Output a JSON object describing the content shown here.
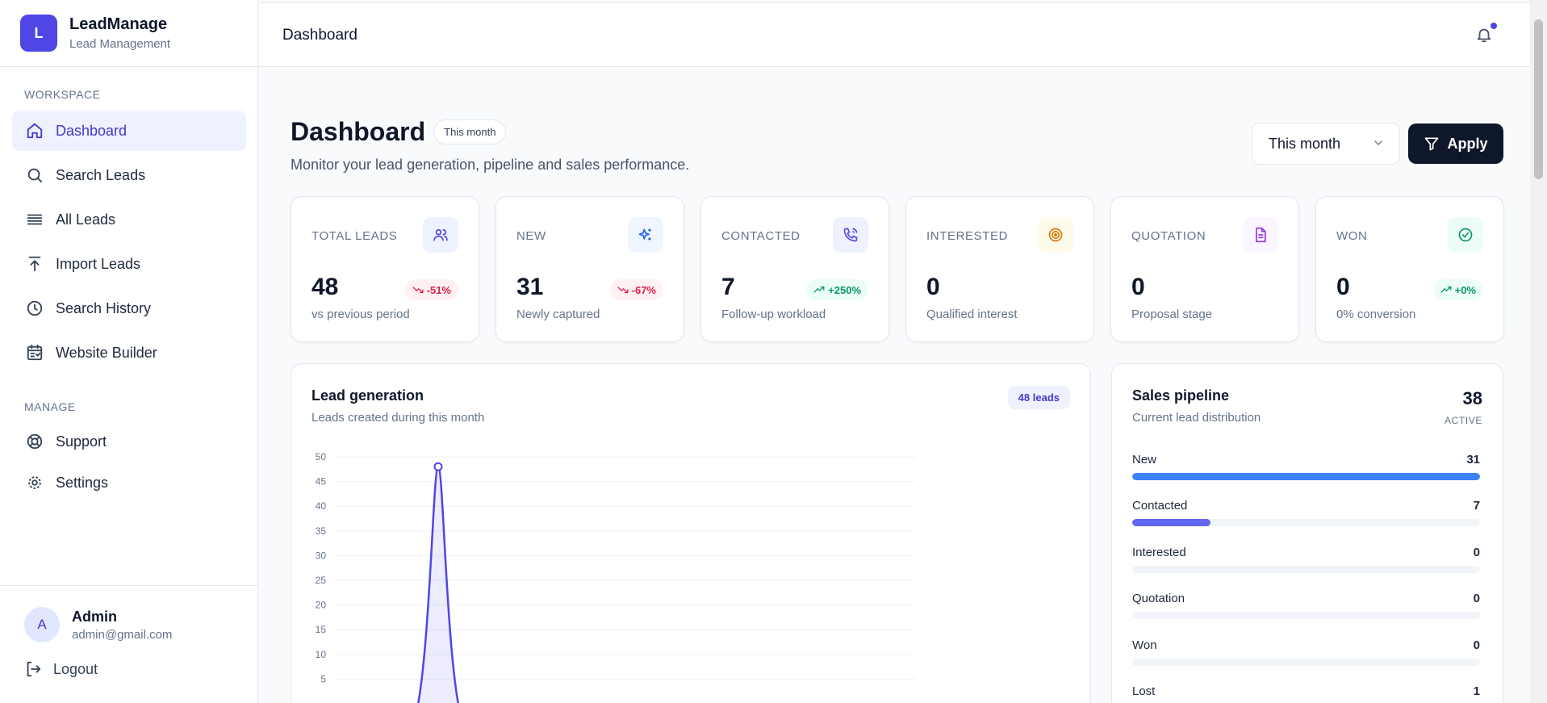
{
  "brand": {
    "logo_letter": "L",
    "name": "LeadManage",
    "subtitle": "Lead Management"
  },
  "sidebar": {
    "workspace_label": "WORKSPACE",
    "workspace_items": [
      {
        "label": "Dashboard",
        "icon": "home-icon",
        "active": true
      },
      {
        "label": "Search Leads",
        "icon": "search-icon"
      },
      {
        "label": "All Leads",
        "icon": "list-icon"
      },
      {
        "label": "Import Leads",
        "icon": "upload-icon"
      },
      {
        "label": "Search History",
        "icon": "clock-icon"
      },
      {
        "label": "Website Builder",
        "icon": "builder-icon"
      }
    ],
    "manage_label": "MANAGE",
    "manage_items": [
      {
        "label": "Support",
        "icon": "lifebuoy-icon"
      },
      {
        "label": "Settings",
        "icon": "gear-icon"
      }
    ],
    "user": {
      "avatar_letter": "A",
      "name": "Admin",
      "email": "admin@gmail.com"
    },
    "logout_label": "Logout"
  },
  "header": {
    "title": "Dashboard",
    "notification_icon": "bell-icon"
  },
  "page": {
    "title": "Dashboard",
    "period_badge": "This month",
    "description": "Monitor your lead generation, pipeline and sales performance.",
    "filter_value": "This month",
    "apply_label": "Apply"
  },
  "stats": [
    {
      "label": "TOTAL LEADS",
      "value": "48",
      "delta": "-51%",
      "trend": "down",
      "sub": "vs previous period",
      "icon": "users-icon",
      "icon_color": "#4f46e5",
      "icon_bg": "#eef2ff"
    },
    {
      "label": "NEW",
      "value": "31",
      "delta": "-67%",
      "trend": "down",
      "sub": "Newly captured",
      "icon": "sparkles-icon",
      "icon_color": "#2563eb",
      "icon_bg": "#eff6ff"
    },
    {
      "label": "CONTACTED",
      "value": "7",
      "delta": "+250%",
      "trend": "up",
      "sub": "Follow-up workload",
      "icon": "phone-icon",
      "icon_color": "#4f46e5",
      "icon_bg": "#eef2ff"
    },
    {
      "label": "INTERESTED",
      "value": "0",
      "delta": "",
      "trend": "none",
      "sub": "Qualified interest",
      "icon": "target-icon",
      "icon_color": "#d97706",
      "icon_bg": "#fffbeb"
    },
    {
      "label": "QUOTATION",
      "value": "0",
      "delta": "",
      "trend": "none",
      "sub": "Proposal stage",
      "icon": "document-icon",
      "icon_color": "#9333ea",
      "icon_bg": "#faf5ff"
    },
    {
      "label": "WON",
      "value": "0",
      "delta": "+0%",
      "trend": "up",
      "sub": "0% conversion",
      "icon": "check-circle-icon",
      "icon_color": "#059669",
      "icon_bg": "#ecfdf5"
    }
  ],
  "lead_chart": {
    "title": "Lead generation",
    "subtitle": "Leads created during this month",
    "badge": "48 leads"
  },
  "chart_data": {
    "type": "area",
    "title": "Lead generation",
    "xlabel": "",
    "ylabel": "",
    "ylim": [
      0,
      50
    ],
    "y_ticks": [
      "50",
      "45",
      "40",
      "35",
      "30",
      "25",
      "20",
      "15",
      "10",
      "5"
    ],
    "grid": true,
    "series": [
      {
        "peak_value": 48,
        "color": "#4f46e5"
      }
    ]
  },
  "pipeline": {
    "title": "Sales pipeline",
    "subtitle": "Current lead distribution",
    "active_count": "38",
    "active_label": "ACTIVE",
    "max": 31,
    "stages": [
      {
        "label": "New",
        "value": 31,
        "color": "#3b82f6"
      },
      {
        "label": "Contacted",
        "value": 7,
        "color": "#6366f1"
      },
      {
        "label": "Interested",
        "value": 0,
        "color": "#f59e0b"
      },
      {
        "label": "Quotation",
        "value": 0,
        "color": "#a855f7"
      },
      {
        "label": "Won",
        "value": 0,
        "color": "#10b981"
      },
      {
        "label": "Lost",
        "value": 1,
        "color": "#ef4444"
      }
    ]
  }
}
